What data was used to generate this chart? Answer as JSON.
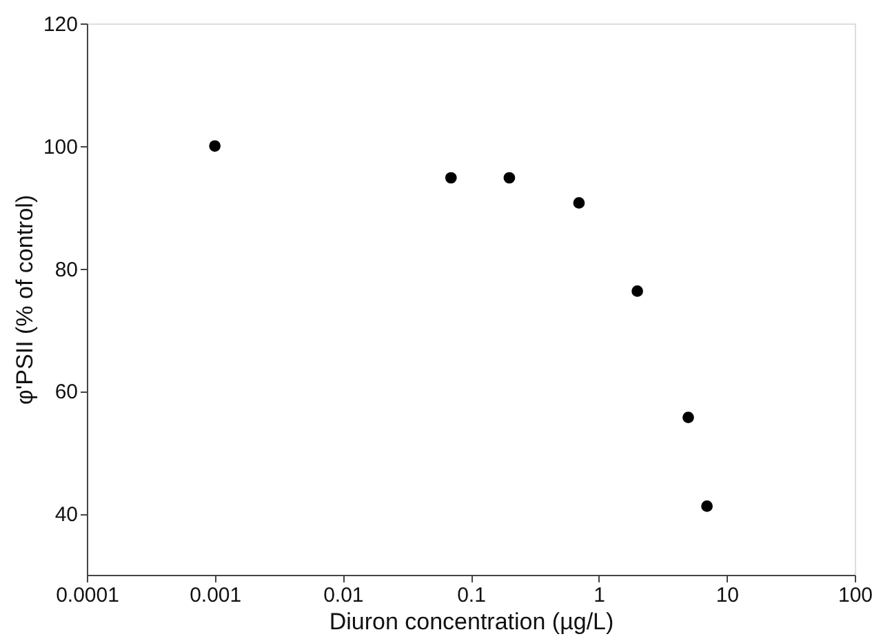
{
  "chart_data": {
    "type": "scatter",
    "xlabel": "Diuron concentration (µg/L)",
    "ylabel": "φ'PSII (% of control)",
    "x": [
      0.001,
      0.07,
      0.2,
      0.7,
      2,
      5,
      7
    ],
    "series": [
      {
        "color": "#000000",
        "values": [
          100,
          94.8,
          94.8,
          90.7,
          76.3,
          55.7,
          41.2
        ]
      }
    ],
    "log": "x",
    "xlim": [
      0.0001,
      100
    ],
    "xticks": [
      0.0001,
      0.001,
      0.01,
      0.1,
      1,
      10,
      100
    ],
    "ylim": [
      30,
      120
    ],
    "yticks": [
      40,
      60,
      80,
      100,
      120
    ],
    "grid": false,
    "marker": "circle"
  }
}
